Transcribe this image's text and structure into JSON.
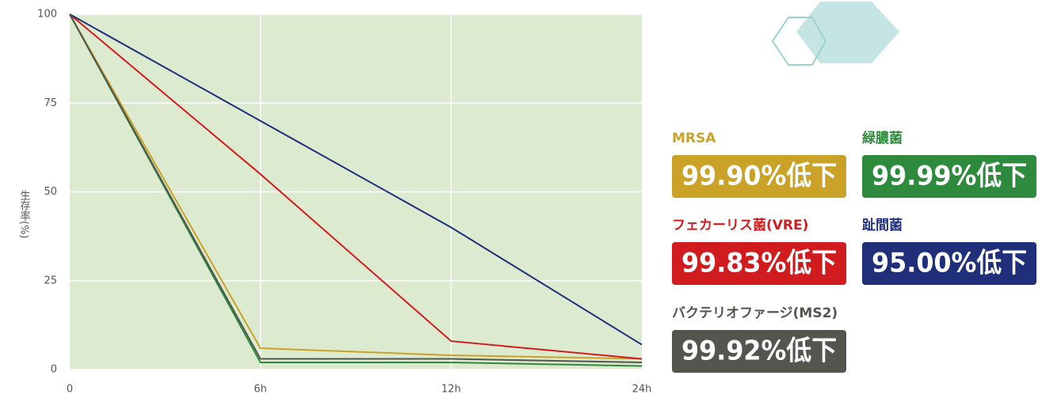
{
  "chart_data": {
    "type": "line",
    "y_label": "生存率(%)",
    "categories": [
      "0",
      "6h",
      "12h",
      "24h"
    ],
    "ylim": [
      0,
      100
    ],
    "yticks": [
      0,
      25,
      50,
      75,
      100
    ],
    "grid": true,
    "series": [
      {
        "name": "MRSA",
        "color": "#c9a227",
        "values": [
          100,
          6,
          4,
          3
        ],
        "badge": "99.90%低下"
      },
      {
        "name": "緑膿菌",
        "color": "#2e8b3e",
        "values": [
          100,
          2,
          2,
          1
        ],
        "badge": "99.99%低下"
      },
      {
        "name": "フェカーリス菌(VRE)",
        "color": "#d01c1f",
        "values": [
          100,
          55,
          8,
          3
        ],
        "badge": "99.83%低下"
      },
      {
        "name": "趾間菌",
        "color": "#1f2f7a",
        "values": [
          100,
          70,
          40,
          7
        ],
        "badge": "95.00%低下"
      },
      {
        "name": "バクテリオファージ(MS2)",
        "color": "#555550",
        "values": [
          100,
          3,
          3,
          2
        ],
        "badge": "99.92%低下"
      }
    ]
  }
}
